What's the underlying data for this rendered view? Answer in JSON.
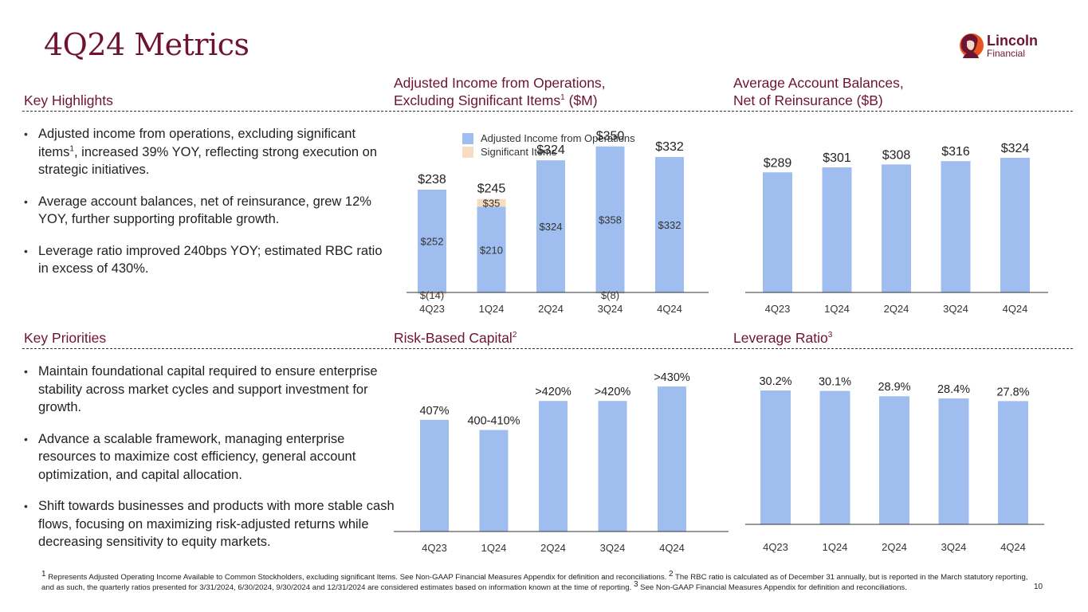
{
  "page": {
    "title": "4Q24 Metrics",
    "page_number": "10",
    "brand": {
      "name_line1": "Lincoln",
      "name_line2": "Financial",
      "trademark": "SM",
      "primary_color": "#6e1332",
      "accent_color": "#e8541e"
    }
  },
  "sections": {
    "key_highlights": {
      "heading": "Key Highlights",
      "bullets": [
        {
          "text_before": "Adjusted income from operations, excluding significant items",
          "sup": "1",
          "text_after": ", increased 39% YOY, reflecting strong execution on strategic initiatives."
        },
        {
          "text_before": "Average account balances, net of reinsurance, grew 12% YOY, further supporting profitable growth.",
          "sup": "",
          "text_after": ""
        },
        {
          "text_before": "Leverage ratio improved 240bps YOY; estimated  RBC ratio in excess of 430%.",
          "sup": "",
          "text_after": ""
        }
      ]
    },
    "key_priorities": {
      "heading": "Key Priorities",
      "bullets": [
        {
          "text_before": "Maintain foundational capital required to ensure enterprise stability across market cycles and support investment for growth.",
          "sup": "",
          "text_after": ""
        },
        {
          "text_before": "Advance a scalable framework, managing enterprise resources to maximize cost efficiency, general account optimization, and capital allocation.",
          "sup": "",
          "text_after": ""
        },
        {
          "text_before": "Shift towards businesses and products with more stable cash flows, focusing on maximizing risk-adjusted returns while decreasing sensitivity to equity markets.",
          "sup": "",
          "text_after": ""
        }
      ]
    }
  },
  "chart_headings": {
    "income": {
      "line1": "Adjusted Income from Operations,",
      "line2": "Excluding Significant Items",
      "sup": "1",
      "suffix": " ($M)"
    },
    "balances": {
      "line1": "Average Account Balances,",
      "line2": "Net of Reinsurance ($B)"
    },
    "rbc": {
      "text": "Risk-Based Capital",
      "sup": "2"
    },
    "leverage": {
      "text": "Leverage Ratio",
      "sup": "3"
    }
  },
  "colors": {
    "bar": "#a0bdf0",
    "significant": "#f6dcc0",
    "heading": "#6e1332"
  },
  "chart_data": [
    {
      "id": "income",
      "type": "bar",
      "stacked": true,
      "title": "Adjusted Income from Operations, Excluding Significant Items ($M)",
      "categories": [
        "4Q23",
        "1Q24",
        "2Q24",
        "3Q24",
        "4Q24"
      ],
      "legend": {
        "placement": "top",
        "entries": [
          "Adjusted Income from Operations",
          "Significant Items"
        ]
      },
      "series": [
        {
          "name": "Adjusted Income from Operations",
          "values": [
            252,
            210,
            324,
            358,
            332
          ],
          "labels": [
            "$252",
            "$210",
            "$324",
            "$358",
            "$332"
          ]
        },
        {
          "name": "Significant Items",
          "values": [
            -14,
            35,
            0,
            -8,
            0
          ],
          "labels": [
            "$(14)",
            "$35",
            "",
            "$(8)",
            ""
          ]
        }
      ],
      "totals": [
        238,
        245,
        324,
        350,
        332
      ],
      "total_labels": [
        "$238",
        "$245",
        "$324",
        "$350",
        "$332"
      ],
      "ylim": [
        -14,
        360
      ],
      "grid": false
    },
    {
      "id": "balances",
      "type": "bar",
      "title": "Average Account Balances, Net of Reinsurance ($B)",
      "categories": [
        "4Q23",
        "1Q24",
        "2Q24",
        "3Q24",
        "4Q24"
      ],
      "values": [
        289,
        301,
        308,
        316,
        324
      ],
      "labels": [
        "$289",
        "$301",
        "$308",
        "$316",
        "$324"
      ],
      "ylim": [
        0,
        324
      ],
      "grid": false
    },
    {
      "id": "rbc",
      "type": "bar",
      "title": "Risk-Based Capital",
      "categories": [
        "4Q23",
        "1Q24",
        "2Q24",
        "3Q24",
        "4Q24"
      ],
      "values": [
        407,
        400,
        420,
        420,
        430
      ],
      "labels": [
        "407%",
        "400-410%",
        ">420%",
        ">420%",
        ">430%"
      ],
      "ylim": [
        330,
        430
      ],
      "grid": false
    },
    {
      "id": "leverage",
      "type": "bar",
      "title": "Leverage Ratio",
      "categories": [
        "4Q23",
        "1Q24",
        "2Q24",
        "3Q24",
        "4Q24"
      ],
      "values": [
        30.2,
        30.1,
        28.9,
        28.4,
        27.8
      ],
      "labels": [
        "30.2%",
        "30.1%",
        "28.9%",
        "28.4%",
        "27.8%"
      ],
      "ylim": [
        0,
        30.2
      ],
      "grid": false
    }
  ],
  "footnote": {
    "parts": [
      {
        "sup": "1",
        "text": " Represents Adjusted Operating Income Available to Common Stockholders, excluding significant Items. See Non-GAAP Financial Measures Appendix for definition and reconciliations. "
      },
      {
        "sup": "2",
        "text": " The RBC ratio is calculated as of December 31 annually, but is reported in the March statutory reporting, and as such, the quarterly ratios presented for 3/31/2024, 6/30/2024, 9/30/2024 and 12/31/2024  are considered estimates based on information known at the time of reporting.  "
      },
      {
        "sup": "3",
        "text": " See Non-GAAP Financial Measures Appendix for definition and reconciliations."
      }
    ]
  }
}
